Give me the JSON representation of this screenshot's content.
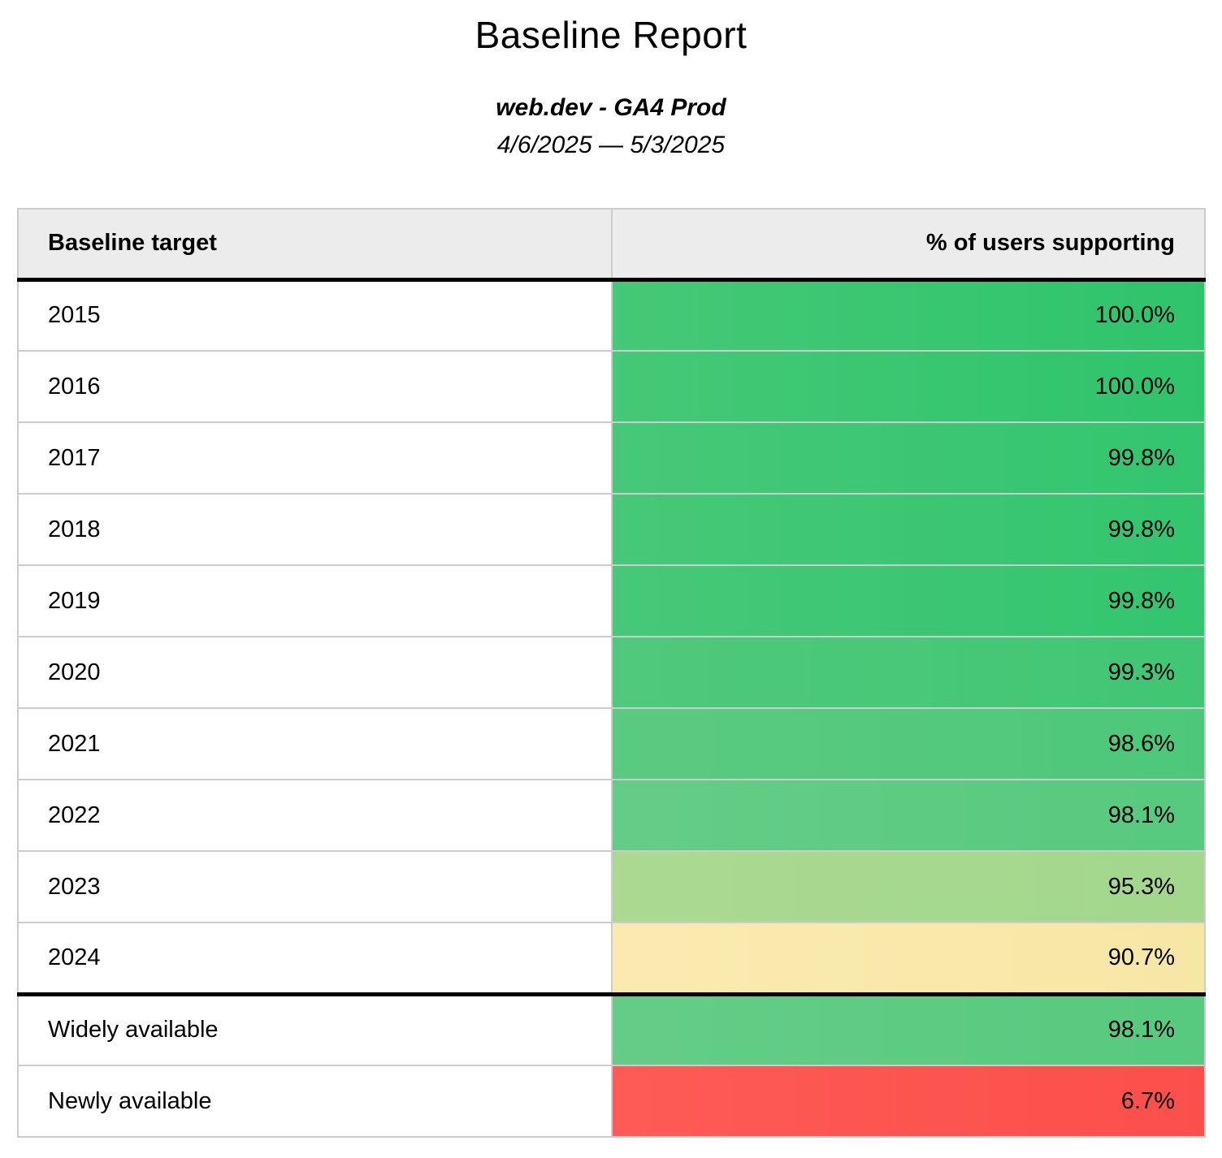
{
  "page": {
    "title": "Baseline Report",
    "subtitle": "web.dev - GA4 Prod",
    "date_range": "4/6/2025 — 5/3/2025"
  },
  "theme": {
    "page_bg": "#ffffff",
    "text_color": "#000000",
    "header_bg": "#ececec",
    "grid_border": "#cccccc",
    "section_border": "#000000"
  },
  "table": {
    "columns": [
      {
        "label": "Baseline target"
      },
      {
        "label": "% of users supporting"
      }
    ],
    "rows": [
      {
        "label": "2015",
        "value": "100.0%",
        "bg_from": "#45c877",
        "bg_to": "#2fc46c"
      },
      {
        "label": "2016",
        "value": "100.0%",
        "bg_from": "#45c877",
        "bg_to": "#2fc46c"
      },
      {
        "label": "2017",
        "value": "99.8%",
        "bg_from": "#46c878",
        "bg_to": "#33c56f"
      },
      {
        "label": "2018",
        "value": "99.8%",
        "bg_from": "#46c878",
        "bg_to": "#33c56f"
      },
      {
        "label": "2019",
        "value": "99.8%",
        "bg_from": "#46c878",
        "bg_to": "#33c56f"
      },
      {
        "label": "2020",
        "value": "99.3%",
        "bg_from": "#50c97c",
        "bg_to": "#40c674"
      },
      {
        "label": "2021",
        "value": "98.6%",
        "bg_from": "#5bca81",
        "bg_to": "#4dc87a"
      },
      {
        "label": "2022",
        "value": "98.1%",
        "bg_from": "#65cc87",
        "bg_to": "#57ca7f"
      },
      {
        "label": "2023",
        "value": "95.3%",
        "bg_from": "#abd992",
        "bg_to": "#a3d78d"
      },
      {
        "label": "2024",
        "value": "90.7%",
        "bg_from": "#faeab0",
        "bg_to": "#f6e7a5"
      },
      {
        "label": "Widely available",
        "value": "98.1%",
        "separator_above": true,
        "bg_from": "#65cc87",
        "bg_to": "#57ca7f"
      },
      {
        "label": "Newly available",
        "value": "6.7%",
        "bg_from": "#fe5b56",
        "bg_to": "#fb4f4b"
      }
    ]
  }
}
